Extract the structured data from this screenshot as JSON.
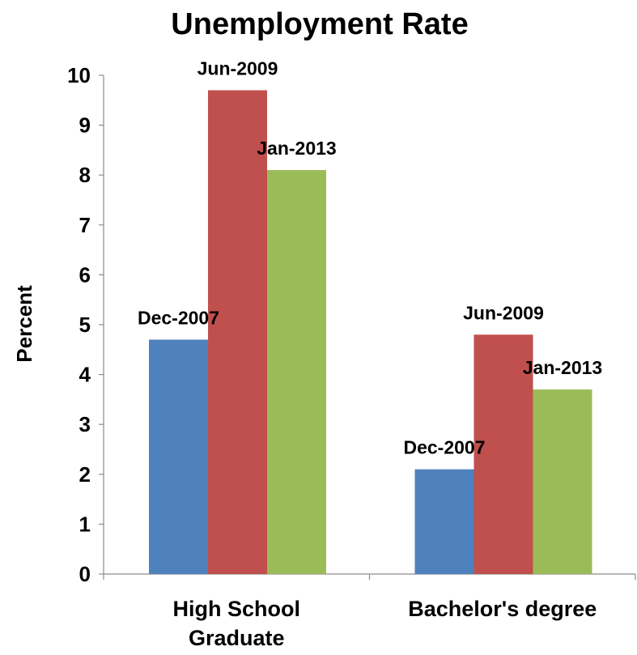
{
  "chart_data": {
    "type": "bar",
    "title": "Unemployment Rate",
    "ylabel": "Percent",
    "xlabel": "",
    "ylim": [
      0,
      10
    ],
    "yticks": [
      "0",
      "1",
      "2",
      "3",
      "4",
      "5",
      "6",
      "7",
      "8",
      "9",
      "10"
    ],
    "categories": [
      "High School Graduate",
      "Bachelor's degree"
    ],
    "category_label_lines": [
      [
        "High School",
        "Graduate"
      ],
      [
        "Bachelor's degree"
      ]
    ],
    "series": [
      {
        "name": "Dec-2007",
        "color": "#4f81bd",
        "values": [
          4.7,
          2.1
        ]
      },
      {
        "name": "Jun-2009",
        "color": "#c0504d",
        "values": [
          9.7,
          4.8
        ]
      },
      {
        "name": "Jan-2013",
        "color": "#9bbb59",
        "values": [
          8.1,
          3.7
        ]
      }
    ],
    "data_labels": [
      [
        "Dec-2007",
        "Jun-2009",
        "Jan-2013"
      ],
      [
        "Dec-2007",
        "Jun-2009",
        "Jan-2013"
      ]
    ],
    "grid": false,
    "legend": "none"
  }
}
